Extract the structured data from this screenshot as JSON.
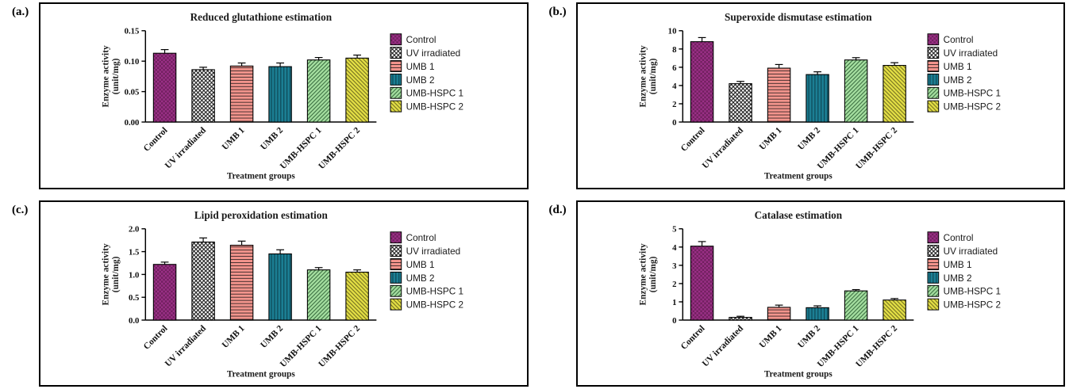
{
  "figure": {
    "xlabel": "Treatment groups",
    "ylabel_line1": "Enzyme activity",
    "ylabel_line2": "(unit/mg)",
    "legend_position": "right",
    "groups": [
      "Control",
      "UV irradiated",
      "UMB 1",
      "UMB 2",
      "UMB-HSPC 1",
      "UMB-HSPC 2"
    ],
    "group_styles": [
      {
        "label": "Control",
        "fill": "#9b3087",
        "pattern": "checker",
        "pattern_color": "#71205f"
      },
      {
        "label": "UV irradiated",
        "fill": "#ffffff",
        "pattern": "crosshatch",
        "pattern_color": "#111111"
      },
      {
        "label": "UMB 1",
        "fill": "#f2948c",
        "pattern": "horizontal",
        "pattern_color": "#4a3130"
      },
      {
        "label": "UMB 2",
        "fill": "#1b7e93",
        "pattern": "vertical",
        "pattern_color": "#0b3d49"
      },
      {
        "label": "UMB-HSPC 1",
        "fill": "#a5dfa0",
        "pattern": "diag-f",
        "pattern_color": "#33663a"
      },
      {
        "label": "UMB-HSPC 2",
        "fill": "#e3df45",
        "pattern": "diag-b",
        "pattern_color": "#6b661c"
      }
    ]
  },
  "chart_data": [
    {
      "type": "bar",
      "panel_label": "(a.)",
      "title": "Reduced glutathione estimation",
      "xlabel": "Treatment groups",
      "ylabel": "Enzyme activity (unit/mg)",
      "categories": [
        "Control",
        "UV irradiated",
        "UMB 1",
        "UMB 2",
        "UMB-HSPC 1",
        "UMB-HSPC 2"
      ],
      "values": [
        0.113,
        0.086,
        0.092,
        0.091,
        0.102,
        0.105
      ],
      "errors": [
        0.006,
        0.004,
        0.005,
        0.006,
        0.004,
        0.005
      ],
      "ylim": [
        0,
        0.15
      ],
      "yticks": [
        0,
        0.05,
        0.1,
        0.15
      ],
      "ytick_labels": [
        "0.00",
        "0.05",
        "0.10",
        "0.15"
      ],
      "legend": [
        "Control",
        "UV irradiated",
        "UMB 1",
        "UMB 2",
        "UMB-HSPC 1",
        "UMB-HSPC 2"
      ]
    },
    {
      "type": "bar",
      "panel_label": "(b.)",
      "title": "Superoxide dismutase estimation",
      "xlabel": "Treatment groups",
      "ylabel": "Enzyme activity (unit/mg)",
      "categories": [
        "Control",
        "UV irradiated",
        "UMB 1",
        "UMB 2",
        "UMB-HSPC 1",
        "UMB-HSPC 2"
      ],
      "values": [
        8.8,
        4.2,
        5.9,
        5.2,
        6.8,
        6.2
      ],
      "errors": [
        0.45,
        0.25,
        0.4,
        0.3,
        0.25,
        0.3
      ],
      "ylim": [
        0,
        10
      ],
      "yticks": [
        0,
        2,
        4,
        6,
        8,
        10
      ],
      "ytick_labels": [
        "0",
        "2",
        "4",
        "6",
        "8",
        "10"
      ],
      "legend": [
        "Control",
        "UV irradiated",
        "UMB 1",
        "UMB 2",
        "UMB-HSPC 1",
        "UMB-HSPC 2"
      ]
    },
    {
      "type": "bar",
      "panel_label": "(c.)",
      "title": "Lipid peroxidation estimation",
      "xlabel": "Treatment groups",
      "ylabel": "Enzyme activity (unit/mg)",
      "categories": [
        "Control",
        "UV irradiated",
        "UMB 1",
        "UMB 2",
        "UMB-HSPC 1",
        "UMB-HSPC 2"
      ],
      "values": [
        1.22,
        1.71,
        1.64,
        1.45,
        1.1,
        1.05
      ],
      "errors": [
        0.05,
        0.09,
        0.09,
        0.09,
        0.05,
        0.05
      ],
      "ylim": [
        0,
        2
      ],
      "yticks": [
        0,
        0.5,
        1.0,
        1.5,
        2.0
      ],
      "ytick_labels": [
        "0.0",
        "0.5",
        "1.0",
        "1.5",
        "2.0"
      ],
      "legend": [
        "Control",
        "UV irradiated",
        "UMB 1",
        "UMB 2",
        "UMB-HSPC 1",
        "UMB-HSPC 2"
      ]
    },
    {
      "type": "bar",
      "panel_label": "(d.)",
      "title": "Catalase estimation",
      "xlabel": "Treatment groups",
      "ylabel": "Enzyme activity (unit/mg)",
      "categories": [
        "Control",
        "UV irradiated",
        "UMB 1",
        "UMB 2",
        "UMB-HSPC 1",
        "UMB-HSPC 2"
      ],
      "values": [
        4.05,
        0.15,
        0.7,
        0.68,
        1.6,
        1.1
      ],
      "errors": [
        0.25,
        0.06,
        0.12,
        0.1,
        0.07,
        0.08
      ],
      "ylim": [
        0,
        5
      ],
      "yticks": [
        0,
        1,
        2,
        3,
        4,
        5
      ],
      "ytick_labels": [
        "0",
        "1",
        "2",
        "3",
        "4",
        "5"
      ],
      "legend": [
        "Control",
        "UV irradiated",
        "UMB 1",
        "UMB 2",
        "UMB-HSPC 1",
        "UMB-HSPC 2"
      ]
    }
  ]
}
